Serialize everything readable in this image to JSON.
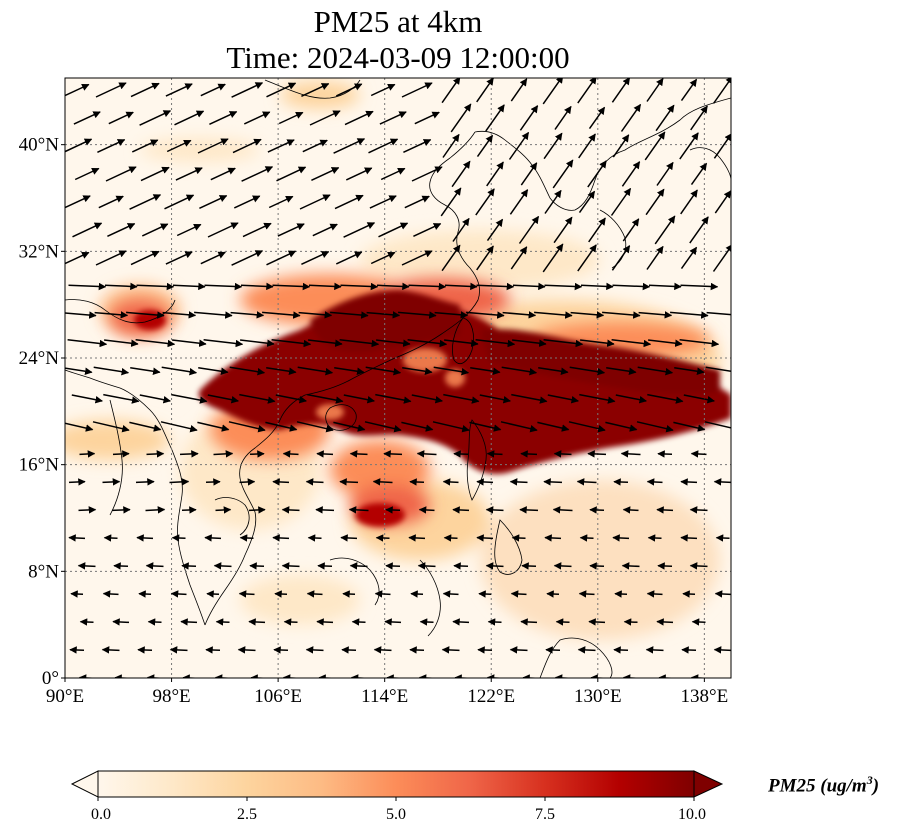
{
  "title": {
    "line1": "PM25 at 4km",
    "line2": "Time: 2024-03-09 12:00:00"
  },
  "map": {
    "lon_range": [
      90,
      140
    ],
    "lat_range": [
      0,
      45
    ],
    "lon_ticks": [
      90,
      98,
      106,
      114,
      122,
      130,
      138
    ],
    "lon_tick_labels": [
      "90°E",
      "98°E",
      "106°E",
      "114°E",
      "122°E",
      "130°E",
      "138°E"
    ],
    "lat_ticks": [
      0,
      8,
      16,
      24,
      32,
      40
    ],
    "lat_tick_labels": [
      "0°",
      "8°N",
      "16°N",
      "24°N",
      "32°N",
      "40°N"
    ],
    "gridlines": "dotted",
    "field": "PM25",
    "vector_field": "wind"
  },
  "colorbar": {
    "title_main": "PM25 (ug/m",
    "title_sup": "3",
    "title_end": ")",
    "range": [
      0,
      10
    ],
    "extend": "both",
    "ticks": [
      0,
      2.5,
      5,
      7.5,
      10
    ],
    "tick_labels": [
      "0.0",
      "2.5",
      "5.0",
      "7.5",
      "10.0"
    ],
    "colormap": [
      "#fff7ec",
      "#fee8c8",
      "#fdd49e",
      "#fdbb84",
      "#fc8d59",
      "#ef6548",
      "#d7301f",
      "#b30000",
      "#7f0000"
    ]
  }
}
